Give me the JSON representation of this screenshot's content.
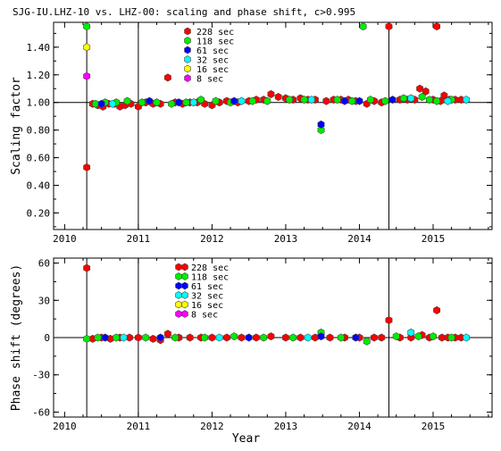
{
  "chart_data": [
    {
      "type": "scatter",
      "title": "SJG-IU.LHZ-10 vs. LHZ-00: scaling and phase shift, c>0.995",
      "xlabel": "",
      "ylabel": "Scaling factor",
      "xlim": [
        2009.85,
        2015.8
      ],
      "ylim": [
        0.08,
        1.58
      ],
      "xticks": [
        2010,
        2011,
        2012,
        2013,
        2014,
        2015
      ],
      "yticks": [
        0.2,
        0.4,
        0.6,
        0.8,
        1.0,
        1.2,
        1.4
      ],
      "ytick_labels": [
        "0.20",
        "0.40",
        "0.60",
        "0.80",
        "1.00",
        "1.20",
        "1.40"
      ],
      "reference_line": 1.0,
      "vertical_lines": [
        2010.3,
        2011.0,
        2014.4
      ],
      "legend_position": "top-left",
      "series": [
        {
          "name": "228 sec",
          "color": "#ff0000",
          "points": [
            [
              2010.3,
              0.53
            ],
            [
              2010.38,
              0.99
            ],
            [
              2010.45,
              0.98
            ],
            [
              2010.52,
              0.97
            ],
            [
              2010.6,
              0.99
            ],
            [
              2010.68,
              0.99
            ],
            [
              2010.75,
              0.97
            ],
            [
              2010.82,
              0.98
            ],
            [
              2010.9,
              0.99
            ],
            [
              2011.0,
              0.97
            ],
            [
              2011.1,
              1.0
            ],
            [
              2011.2,
              0.99
            ],
            [
              2011.3,
              0.99
            ],
            [
              2011.4,
              1.18
            ],
            [
              2011.5,
              1.0
            ],
            [
              2011.6,
              0.99
            ],
            [
              2011.7,
              1.0
            ],
            [
              2011.8,
              1.0
            ],
            [
              2011.9,
              0.99
            ],
            [
              2012.0,
              0.98
            ],
            [
              2012.1,
              1.0
            ],
            [
              2012.2,
              1.01
            ],
            [
              2012.35,
              1.0
            ],
            [
              2012.5,
              1.01
            ],
            [
              2012.6,
              1.02
            ],
            [
              2012.7,
              1.02
            ],
            [
              2012.8,
              1.06
            ],
            [
              2012.9,
              1.04
            ],
            [
              2013.0,
              1.03
            ],
            [
              2013.1,
              1.02
            ],
            [
              2013.2,
              1.03
            ],
            [
              2013.3,
              1.02
            ],
            [
              2013.4,
              1.02
            ],
            [
              2013.55,
              1.01
            ],
            [
              2013.65,
              1.02
            ],
            [
              2013.75,
              1.02
            ],
            [
              2013.85,
              1.02
            ],
            [
              2013.95,
              1.01
            ],
            [
              2014.1,
              0.99
            ],
            [
              2014.2,
              1.01
            ],
            [
              2014.3,
              1.0
            ],
            [
              2014.4,
              1.55
            ],
            [
              2014.55,
              1.02
            ],
            [
              2014.65,
              1.02
            ],
            [
              2014.75,
              1.02
            ],
            [
              2014.82,
              1.1
            ],
            [
              2014.9,
              1.08
            ],
            [
              2015.0,
              1.02
            ],
            [
              2015.05,
              1.55
            ],
            [
              2015.1,
              1.01
            ],
            [
              2015.15,
              1.05
            ],
            [
              2015.22,
              1.02
            ],
            [
              2015.3,
              1.02
            ],
            [
              2015.38,
              1.02
            ]
          ]
        },
        {
          "name": "118 sec",
          "color": "#00ee00",
          "points": [
            [
              2010.3,
              1.55
            ],
            [
              2010.42,
              0.99
            ],
            [
              2010.55,
              1.0
            ],
            [
              2010.7,
              1.0
            ],
            [
              2010.85,
              1.01
            ],
            [
              2011.05,
              1.0
            ],
            [
              2011.25,
              1.0
            ],
            [
              2011.45,
              0.99
            ],
            [
              2011.65,
              1.0
            ],
            [
              2011.85,
              1.02
            ],
            [
              2012.05,
              1.01
            ],
            [
              2012.25,
              1.0
            ],
            [
              2012.55,
              1.01
            ],
            [
              2012.75,
              1.01
            ],
            [
              2013.05,
              1.02
            ],
            [
              2013.25,
              1.02
            ],
            [
              2013.48,
              0.8
            ],
            [
              2013.7,
              1.02
            ],
            [
              2013.9,
              1.01
            ],
            [
              2014.05,
              1.55
            ],
            [
              2014.15,
              1.02
            ],
            [
              2014.35,
              1.01
            ],
            [
              2014.6,
              1.03
            ],
            [
              2014.85,
              1.04
            ],
            [
              2014.95,
              1.02
            ],
            [
              2015.05,
              1.01
            ],
            [
              2015.25,
              1.02
            ]
          ]
        },
        {
          "name": "61 sec",
          "color": "#0000ff",
          "points": [
            [
              2010.5,
              0.99
            ],
            [
              2011.15,
              1.01
            ],
            [
              2011.55,
              1.0
            ],
            [
              2012.3,
              1.01
            ],
            [
              2013.48,
              0.84
            ],
            [
              2013.8,
              1.01
            ],
            [
              2014.0,
              1.01
            ],
            [
              2014.45,
              1.02
            ]
          ]
        },
        {
          "name": "32 sec",
          "color": "#00ffff",
          "points": [
            [
              2010.65,
              0.99
            ],
            [
              2011.75,
              1.0
            ],
            [
              2012.4,
              1.01
            ],
            [
              2013.35,
              1.02
            ],
            [
              2014.7,
              1.03
            ],
            [
              2015.2,
              1.01
            ],
            [
              2015.45,
              1.02
            ]
          ]
        },
        {
          "name": "16 sec",
          "color": "#ffff00",
          "points": [
            [
              2010.3,
              1.4
            ]
          ]
        },
        {
          "name": "8 sec",
          "color": "#ff00ff",
          "points": [
            [
              2010.3,
              1.19
            ]
          ]
        }
      ]
    },
    {
      "type": "scatter",
      "title": "",
      "xlabel": "Year",
      "ylabel": "Phase shift (degrees)",
      "xlim": [
        2009.85,
        2015.8
      ],
      "ylim": [
        -64,
        64
      ],
      "xticks": [
        2010,
        2011,
        2012,
        2013,
        2014,
        2015
      ],
      "yticks": [
        -60,
        -30,
        0,
        30,
        60
      ],
      "ytick_labels": [
        "-60",
        "-30",
        "0",
        "30",
        "60"
      ],
      "reference_line": 0,
      "vertical_lines": [
        2010.3,
        2011.0,
        2014.4
      ],
      "legend_position": "top-left",
      "series": [
        {
          "name": "228 sec",
          "color": "#ff0000",
          "points": [
            [
              2010.3,
              56
            ],
            [
              2010.38,
              -1
            ],
            [
              2010.5,
              0
            ],
            [
              2010.62,
              -1
            ],
            [
              2010.75,
              0
            ],
            [
              2010.88,
              0
            ],
            [
              2011.0,
              0
            ],
            [
              2011.2,
              -1
            ],
            [
              2011.3,
              -2
            ],
            [
              2011.4,
              3
            ],
            [
              2011.55,
              0
            ],
            [
              2011.7,
              0
            ],
            [
              2011.85,
              0
            ],
            [
              2012.0,
              0
            ],
            [
              2012.2,
              0
            ],
            [
              2012.4,
              0
            ],
            [
              2012.6,
              0
            ],
            [
              2012.8,
              1
            ],
            [
              2013.0,
              0
            ],
            [
              2013.2,
              0
            ],
            [
              2013.4,
              0
            ],
            [
              2013.6,
              0
            ],
            [
              2013.8,
              0
            ],
            [
              2014.0,
              0
            ],
            [
              2014.2,
              0
            ],
            [
              2014.3,
              0
            ],
            [
              2014.4,
              14
            ],
            [
              2014.55,
              0
            ],
            [
              2014.7,
              0
            ],
            [
              2014.85,
              2
            ],
            [
              2014.95,
              0
            ],
            [
              2015.05,
              22
            ],
            [
              2015.12,
              0
            ],
            [
              2015.2,
              0
            ],
            [
              2015.3,
              0
            ],
            [
              2015.38,
              0
            ]
          ]
        },
        {
          "name": "118 sec",
          "color": "#00ee00",
          "points": [
            [
              2010.3,
              -1
            ],
            [
              2010.45,
              0
            ],
            [
              2010.7,
              0
            ],
            [
              2011.1,
              0
            ],
            [
              2011.5,
              0
            ],
            [
              2011.9,
              0
            ],
            [
              2012.3,
              1
            ],
            [
              2012.7,
              0
            ],
            [
              2013.1,
              0
            ],
            [
              2013.48,
              4
            ],
            [
              2013.75,
              0
            ],
            [
              2014.1,
              -3
            ],
            [
              2014.5,
              1
            ],
            [
              2014.8,
              1
            ],
            [
              2015.0,
              1
            ],
            [
              2015.25,
              0
            ]
          ]
        },
        {
          "name": "61 sec",
          "color": "#0000ff",
          "points": [
            [
              2010.55,
              0
            ],
            [
              2011.3,
              0
            ],
            [
              2012.5,
              0
            ],
            [
              2013.48,
              1
            ],
            [
              2013.95,
              0
            ]
          ]
        },
        {
          "name": "32 sec",
          "color": "#00ffff",
          "points": [
            [
              2010.8,
              0
            ],
            [
              2012.1,
              0
            ],
            [
              2013.3,
              0
            ],
            [
              2014.7,
              4
            ],
            [
              2015.45,
              0
            ]
          ]
        },
        {
          "name": "16 sec",
          "color": "#ffff00",
          "points": []
        },
        {
          "name": "8 sec",
          "color": "#ff00ff",
          "points": []
        }
      ]
    }
  ]
}
